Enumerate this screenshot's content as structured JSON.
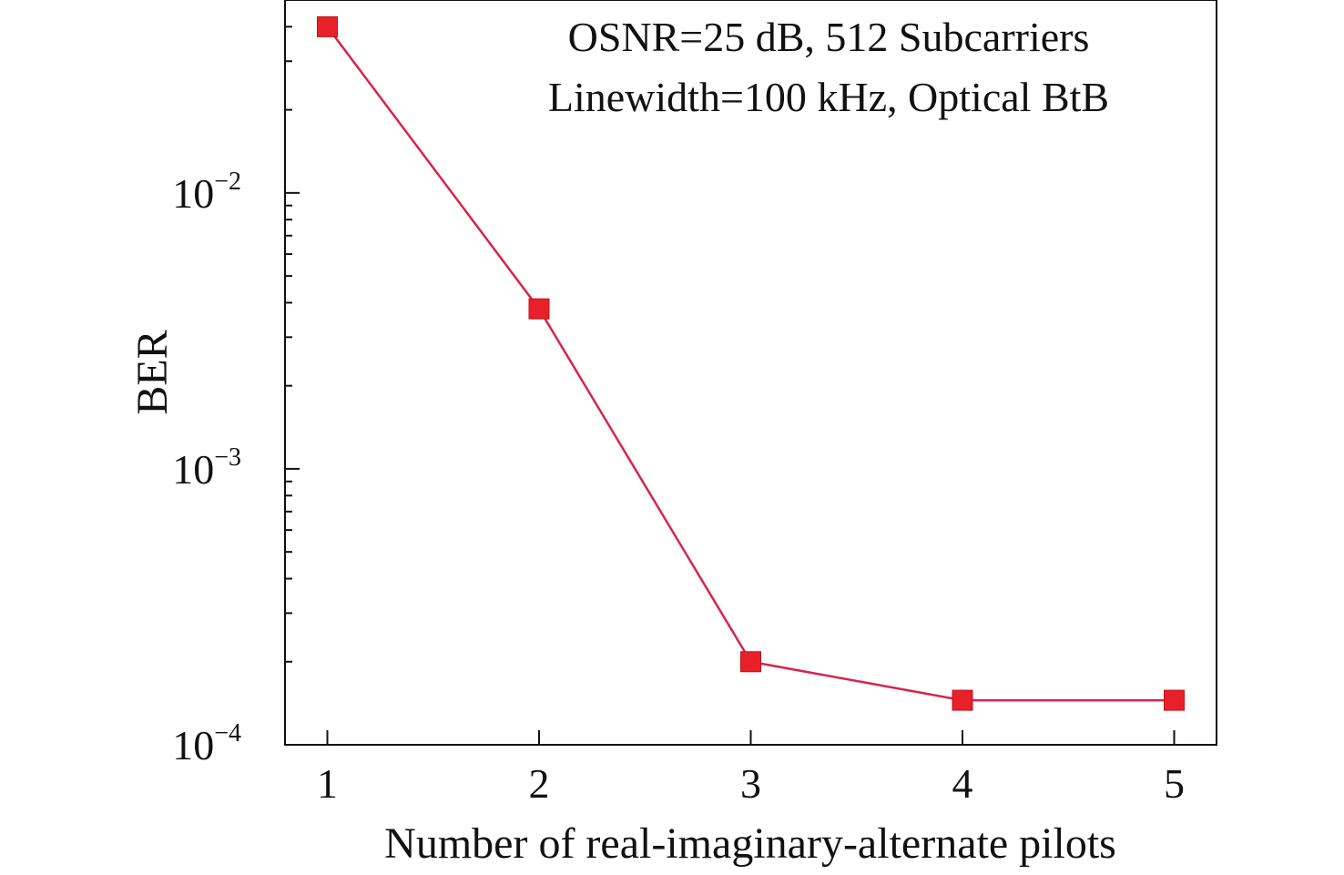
{
  "chart_data": {
    "type": "line",
    "x": [
      1,
      2,
      3,
      4,
      5
    ],
    "series": [
      {
        "values": [
          0.04,
          0.0038,
          0.0002,
          0.000145,
          0.000145
        ],
        "color": "#e8202a",
        "line_color": "#d8234b",
        "marker": "square"
      }
    ],
    "xlabel": "Number of real-imaginary-alternate pilots",
    "ylabel": "BER",
    "xlim": [
      0.8,
      5.2
    ],
    "ylim": [
      0.0001,
      0.05
    ],
    "yscale": "log",
    "xticks": [
      "1",
      "2",
      "3",
      "4",
      "5"
    ],
    "yticks": [
      {
        "base": "10",
        "exp": "−2",
        "value": 0.01
      },
      {
        "base": "10",
        "exp": "−3",
        "value": 0.001
      },
      {
        "base": "10",
        "exp": "−4",
        "value": 0.0001
      }
    ],
    "annotations": [
      "OSNR=25 dB, 512 Subcarriers",
      "Linewidth=100 kHz, Optical BtB"
    ],
    "grid": false,
    "legend": "none"
  }
}
